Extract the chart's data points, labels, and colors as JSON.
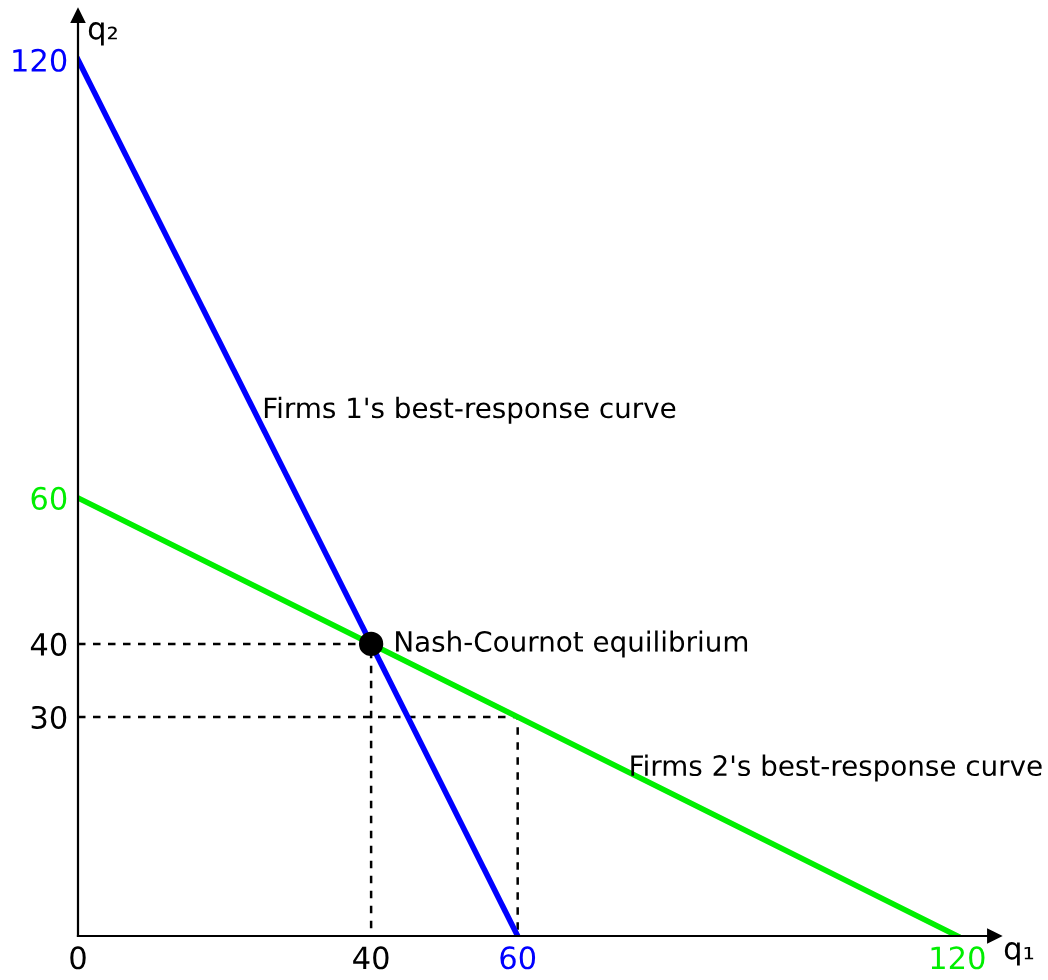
{
  "chart_data": {
    "type": "line",
    "xlabel": "q₁",
    "ylabel": "q₂",
    "xlim": [
      0,
      125
    ],
    "ylim": [
      0,
      126
    ],
    "xticks": [
      0,
      40,
      60,
      120
    ],
    "yticks": [
      30,
      40,
      60,
      120
    ],
    "grid": false,
    "legend": false,
    "series": [
      {
        "x": [
          0,
          60
        ],
        "values": [
          120,
          0
        ],
        "color": "#0000ff"
      },
      {
        "x": [
          0,
          120
        ],
        "values": [
          60,
          0
        ],
        "color": "#00ee00"
      },
      {
        "x": [
          0,
          40,
          40
        ],
        "values": [
          40,
          40,
          0
        ],
        "color": "#000000",
        "line_style": "dashed"
      },
      {
        "x": [
          0,
          60,
          60
        ],
        "values": [
          30,
          30,
          0
        ],
        "color": "#000000",
        "line_style": "dashed"
      },
      {
        "type": "scatter",
        "x": [
          40
        ],
        "values": [
          40
        ],
        "color": "#000000",
        "marker": "circle"
      }
    ],
    "annotations": [
      {
        "text": "Nash-Cournot equilibrium",
        "x": 40,
        "y": 40
      },
      {
        "text": "Firms 1's best-response curve",
        "x": 24,
        "y": 72
      },
      {
        "text": "Firms 2's best-response curve",
        "x": 74,
        "y": 23
      }
    ]
  }
}
